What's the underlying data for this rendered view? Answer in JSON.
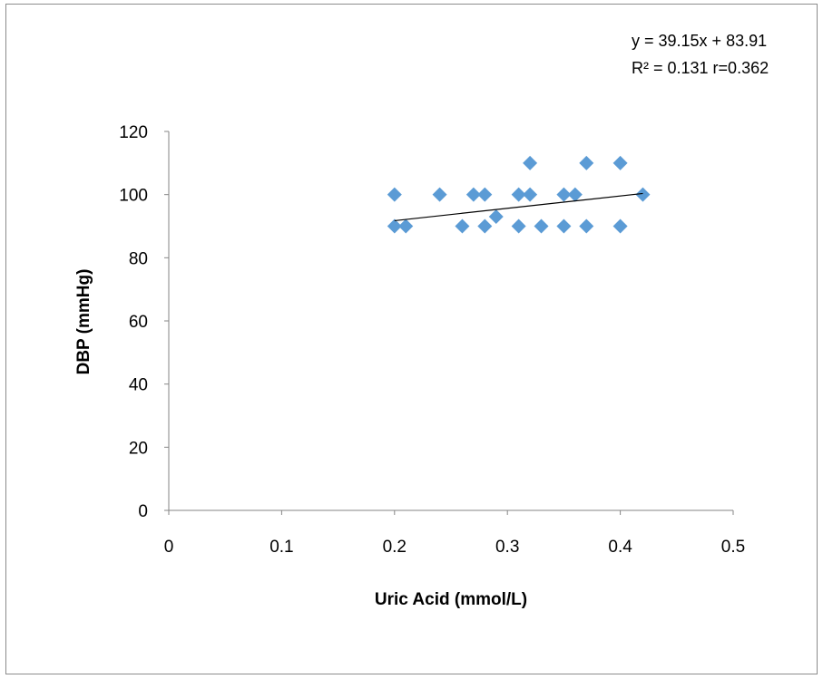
{
  "chart_data": {
    "type": "scatter",
    "title": "",
    "xlabel": "Uric Acid (mmol/L)",
    "ylabel": "DBP (mmHg)",
    "xlim": [
      0,
      0.5
    ],
    "ylim": [
      0,
      120
    ],
    "x_ticks": [
      0,
      0.1,
      0.2,
      0.3,
      0.4,
      0.5
    ],
    "x_tick_labels": [
      "0",
      "0.1",
      "0.2",
      "0.3",
      "0.4",
      "0.5"
    ],
    "y_ticks": [
      0,
      20,
      40,
      60,
      80,
      100,
      120
    ],
    "y_tick_labels": [
      "0",
      "20",
      "40",
      "60",
      "80",
      "100",
      "120"
    ],
    "grid": false,
    "legend": "none",
    "marker": "diamond",
    "marker_color": "#5b9bd5",
    "series": [
      {
        "points": [
          {
            "x": 0.2,
            "y": 100
          },
          {
            "x": 0.2,
            "y": 90
          },
          {
            "x": 0.21,
            "y": 90
          },
          {
            "x": 0.24,
            "y": 100
          },
          {
            "x": 0.26,
            "y": 90
          },
          {
            "x": 0.27,
            "y": 100
          },
          {
            "x": 0.28,
            "y": 100
          },
          {
            "x": 0.28,
            "y": 90
          },
          {
            "x": 0.29,
            "y": 93
          },
          {
            "x": 0.31,
            "y": 100
          },
          {
            "x": 0.31,
            "y": 90
          },
          {
            "x": 0.32,
            "y": 110
          },
          {
            "x": 0.32,
            "y": 100
          },
          {
            "x": 0.33,
            "y": 90
          },
          {
            "x": 0.35,
            "y": 100
          },
          {
            "x": 0.35,
            "y": 90
          },
          {
            "x": 0.36,
            "y": 100
          },
          {
            "x": 0.37,
            "y": 110
          },
          {
            "x": 0.37,
            "y": 90
          },
          {
            "x": 0.4,
            "y": 110
          },
          {
            "x": 0.4,
            "y": 90
          },
          {
            "x": 0.42,
            "y": 100
          }
        ]
      }
    ],
    "trendline": {
      "slope": 39.15,
      "intercept": 83.91,
      "x_range": [
        0.2,
        0.42
      ],
      "color": "#000000"
    },
    "annotations": {
      "equation": "y = 39.15x + 83.91",
      "r_squared": "R² = 0.131 r=0.362"
    }
  }
}
